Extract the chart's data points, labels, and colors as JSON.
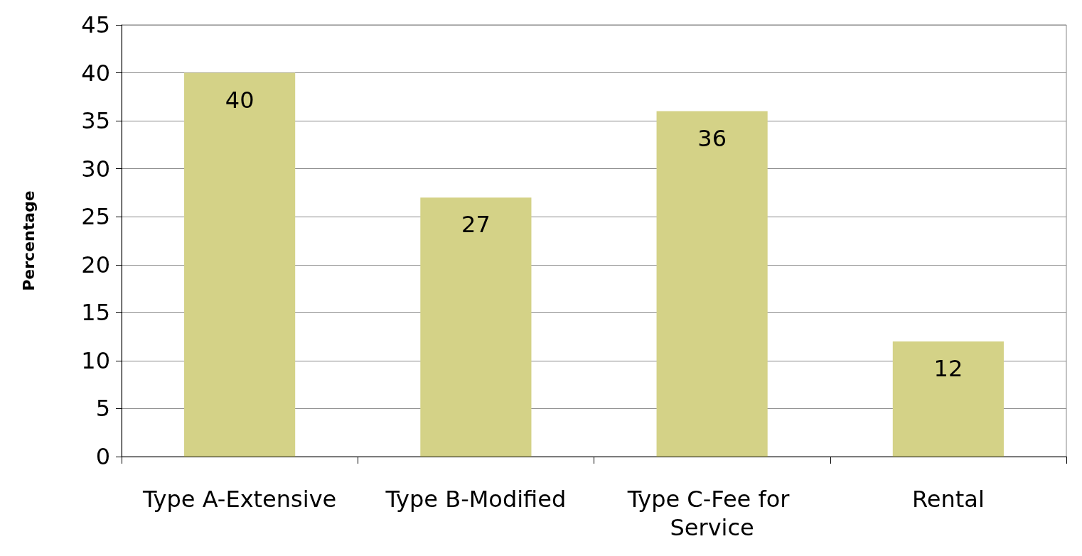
{
  "chart_data": {
    "type": "bar",
    "ylabel": "Percentage",
    "categories": [
      "Type A-Extensive",
      "Type B-Modified",
      "Type C-Fee for Service",
      "Rental"
    ],
    "values": [
      40,
      27,
      36,
      12
    ],
    "color": "#d4d287",
    "ylim": [
      0,
      45
    ],
    "yticks": [
      0,
      5,
      10,
      15,
      20,
      25,
      30,
      35,
      40,
      45
    ],
    "grid": "y",
    "data_labels": true
  }
}
